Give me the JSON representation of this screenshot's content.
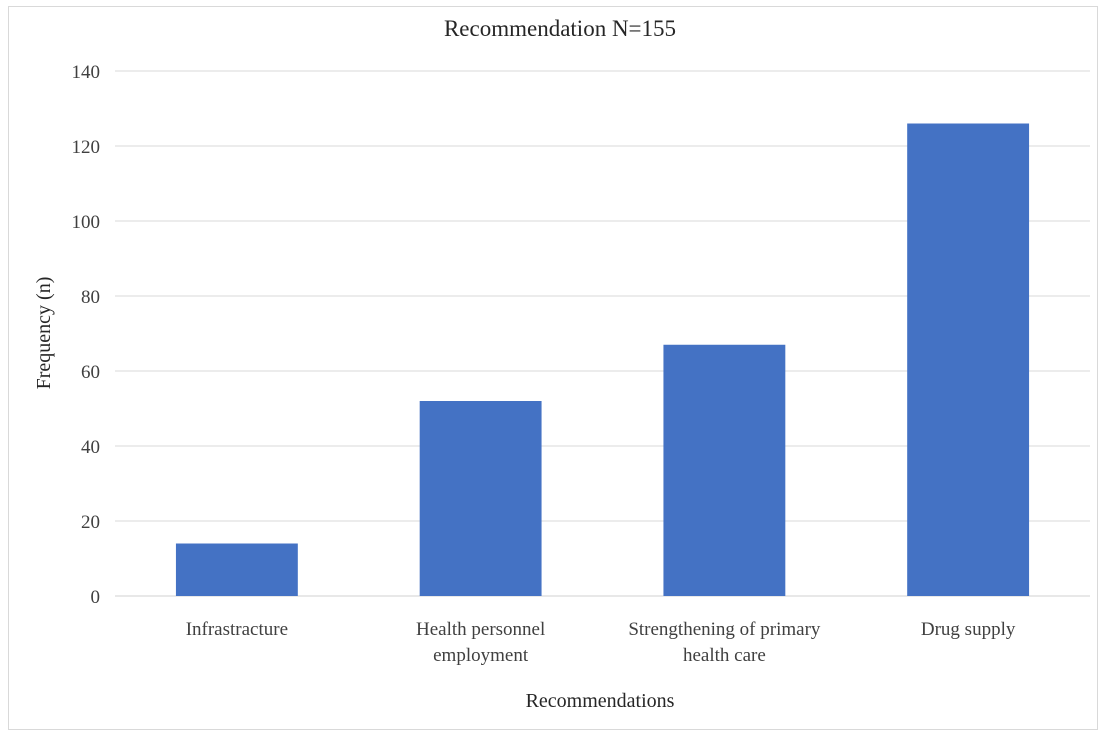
{
  "chart_data": {
    "type": "bar",
    "title": "Recommendation N=155",
    "xlabel": "Recommendations",
    "ylabel": "Frequency (n)",
    "categories": [
      [
        "Infrastracture"
      ],
      [
        "Health personnel",
        "employment"
      ],
      [
        "Strengthening of primary",
        "health care"
      ],
      [
        "Drug supply"
      ]
    ],
    "values": [
      14,
      52,
      67,
      126
    ],
    "ylim": [
      0,
      140
    ],
    "yticks": [
      0,
      20,
      40,
      60,
      80,
      100,
      120,
      140
    ],
    "grid": true,
    "legend": "none",
    "bar_color": "#4472C4"
  }
}
